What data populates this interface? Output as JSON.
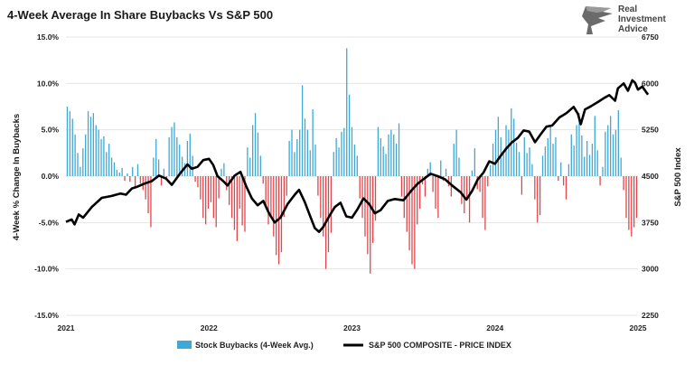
{
  "chart_data": {
    "type": "bar+line",
    "title": "4-Week Average In Share Buybacks Vs S&P 500",
    "ylabel_left": "4-Week % Change In Buybacks",
    "ylabel_right": "S&P 500 Index",
    "ylim_left": [
      -15,
      15
    ],
    "ylim_right": [
      2250,
      6750
    ],
    "left_ticks": [
      "15.0%",
      "10.0%",
      "5.0%",
      "0.0%",
      "-5.0%",
      "-10.0%",
      "-15.0%"
    ],
    "left_tick_values": [
      15,
      10,
      5,
      0,
      -5,
      -10,
      -15
    ],
    "right_ticks": [
      "6750",
      "6000",
      "5250",
      "4500",
      "3750",
      "3000",
      "2250"
    ],
    "right_tick_values": [
      6750,
      6000,
      5250,
      4500,
      3750,
      3000,
      2250
    ],
    "x_ticks": [
      "2021",
      "2022",
      "2023",
      "2024",
      "2025"
    ],
    "x_tick_values": [
      2021,
      2022,
      2023,
      2024,
      2025
    ],
    "xlim": [
      2021,
      2025
    ],
    "legend": [
      {
        "label": "Stock Buybacks (4-Week Avg.)",
        "color": "#3ea8d6"
      },
      {
        "label": "S&P 500 COMPOSITE - PRICE INDEX",
        "color": "#000000"
      }
    ],
    "colors": {
      "positive": "#3ea8d6",
      "negative": "#e0474c",
      "line": "#000000",
      "grid": "#e4e4e4"
    },
    "buybacks_weekly": [
      7.5,
      7,
      6.2,
      4.5,
      2.5,
      1,
      3,
      4.5,
      7,
      6.4,
      6.8,
      5.5,
      5,
      4,
      4.3,
      2.6,
      3.5,
      2,
      1.5,
      0.7,
      0.4,
      0.9,
      -0.5,
      0.3,
      -0.6,
      1,
      -1.2,
      1.3,
      -0.8,
      -1.5,
      -2.5,
      -4,
      -5.5,
      2,
      4,
      1.8,
      -1,
      0.8,
      -0.4,
      4.2,
      5.3,
      5.8,
      4.2,
      3.4,
      2.1,
      1.4,
      3.8,
      4.6,
      2.2,
      -0.6,
      -1.2,
      -2.5,
      -4.5,
      -5.2,
      -3.5,
      -2.8,
      -4.5,
      -5.5,
      -2.4,
      0.8,
      1.4,
      -1.5,
      -3.1,
      -4.5,
      -5.8,
      -7,
      -3.5,
      -5.3,
      -6,
      3.1,
      2,
      5.5,
      6.8,
      4.7,
      2.2,
      -0.8,
      -3.5,
      -5.2,
      -4.5,
      -6.5,
      -8.5,
      -9.5,
      -8.2,
      -4.4,
      -2.1,
      3.8,
      5,
      2.6,
      4,
      5,
      9.8,
      6.2,
      5,
      2.8,
      7.2,
      3.4,
      -2.1,
      -4.5,
      -6.5,
      -10,
      -8.2,
      -6.1,
      2.6,
      4.1,
      3.1,
      4.8,
      5.2,
      13.8,
      8.8,
      5.3,
      3.4,
      2.2,
      -2.4,
      -4.5,
      -6.5,
      -8.4,
      -10.5,
      -7.2,
      -4.8,
      5.3,
      4.1,
      3.2,
      2.4,
      4.5,
      5,
      4.5,
      3.5,
      5.7,
      -2.2,
      -4.5,
      -6,
      -8,
      -9.5,
      -10,
      -5.2,
      -3.5,
      -0.9,
      -2.2,
      0.8,
      1.5,
      -1.7,
      -3.5,
      -4.5,
      1.7,
      -0.5,
      0.8,
      -1.1,
      -2.2,
      3.5,
      5,
      2,
      -3,
      -4,
      -2.5,
      -5,
      0.6,
      3,
      -1.4,
      -1.7,
      -4.5,
      -5.8,
      -1.1,
      1.2,
      3.5,
      5,
      6.4,
      4.2,
      2.4,
      5.5,
      5,
      7.3,
      6.2,
      3.6,
      2.6,
      -2,
      4.2,
      2.5,
      3.1,
      1.3,
      -2.5,
      -5,
      -4.2,
      2.2,
      3.2,
      4.1,
      5.3,
      3.5,
      4.2,
      -0.5,
      1.5,
      -1,
      -2.5,
      1.3,
      4.5,
      3.3,
      5.5,
      6.8,
      4.4,
      2.1,
      3.8,
      2.3,
      3.5,
      6.5,
      2.8,
      -1,
      1,
      4.8,
      5.5,
      6.5,
      4.5,
      5,
      7.1,
      2,
      -1.5,
      -4.5,
      -5.8,
      -6.5,
      -5.5,
      -4.5
    ],
    "sp500": [
      [
        2021.0,
        3760
      ],
      [
        2021.04,
        3800
      ],
      [
        2021.06,
        3720
      ],
      [
        2021.09,
        3880
      ],
      [
        2021.12,
        3830
      ],
      [
        2021.18,
        4000
      ],
      [
        2021.25,
        4150
      ],
      [
        2021.32,
        4180
      ],
      [
        2021.38,
        4220
      ],
      [
        2021.42,
        4200
      ],
      [
        2021.46,
        4300
      ],
      [
        2021.5,
        4330
      ],
      [
        2021.55,
        4380
      ],
      [
        2021.6,
        4420
      ],
      [
        2021.65,
        4510
      ],
      [
        2021.7,
        4460
      ],
      [
        2021.74,
        4360
      ],
      [
        2021.8,
        4550
      ],
      [
        2021.85,
        4690
      ],
      [
        2021.88,
        4620
      ],
      [
        2021.92,
        4650
      ],
      [
        2021.96,
        4760
      ],
      [
        2022.0,
        4780
      ],
      [
        2022.03,
        4680
      ],
      [
        2022.06,
        4500
      ],
      [
        2022.1,
        4420
      ],
      [
        2022.13,
        4350
      ],
      [
        2022.18,
        4510
      ],
      [
        2022.22,
        4570
      ],
      [
        2022.26,
        4340
      ],
      [
        2022.3,
        4140
      ],
      [
        2022.34,
        4030
      ],
      [
        2022.38,
        4100
      ],
      [
        2022.42,
        3900
      ],
      [
        2022.46,
        3750
      ],
      [
        2022.5,
        3830
      ],
      [
        2022.55,
        4050
      ],
      [
        2022.6,
        4200
      ],
      [
        2022.63,
        4280
      ],
      [
        2022.67,
        4080
      ],
      [
        2022.7,
        3900
      ],
      [
        2022.74,
        3660
      ],
      [
        2022.77,
        3600
      ],
      [
        2022.8,
        3680
      ],
      [
        2022.84,
        3850
      ],
      [
        2022.88,
        4000
      ],
      [
        2022.92,
        4070
      ],
      [
        2022.96,
        3850
      ],
      [
        2023.0,
        3830
      ],
      [
        2023.04,
        3970
      ],
      [
        2023.08,
        4140
      ],
      [
        2023.12,
        4050
      ],
      [
        2023.16,
        3900
      ],
      [
        2023.2,
        3950
      ],
      [
        2023.25,
        4100
      ],
      [
        2023.3,
        4130
      ],
      [
        2023.36,
        4110
      ],
      [
        2023.42,
        4280
      ],
      [
        2023.46,
        4380
      ],
      [
        2023.5,
        4450
      ],
      [
        2023.55,
        4540
      ],
      [
        2023.6,
        4500
      ],
      [
        2023.65,
        4450
      ],
      [
        2023.7,
        4350
      ],
      [
        2023.76,
        4240
      ],
      [
        2023.8,
        4120
      ],
      [
        2023.84,
        4260
      ],
      [
        2023.88,
        4450
      ],
      [
        2023.92,
        4560
      ],
      [
        2023.96,
        4740
      ],
      [
        2024.0,
        4700
      ],
      [
        2024.04,
        4830
      ],
      [
        2024.08,
        4950
      ],
      [
        2024.12,
        5050
      ],
      [
        2024.16,
        5120
      ],
      [
        2024.2,
        5240
      ],
      [
        2024.24,
        5220
      ],
      [
        2024.28,
        5050
      ],
      [
        2024.32,
        5180
      ],
      [
        2024.36,
        5300
      ],
      [
        2024.4,
        5320
      ],
      [
        2024.45,
        5450
      ],
      [
        2024.5,
        5520
      ],
      [
        2024.55,
        5620
      ],
      [
        2024.58,
        5510
      ],
      [
        2024.6,
        5340
      ],
      [
        2024.63,
        5580
      ],
      [
        2024.67,
        5630
      ],
      [
        2024.72,
        5700
      ],
      [
        2024.76,
        5760
      ],
      [
        2024.8,
        5810
      ],
      [
        2024.84,
        5720
      ],
      [
        2024.86,
        5920
      ],
      [
        2024.9,
        6000
      ],
      [
        2024.93,
        5880
      ],
      [
        2024.96,
        6050
      ],
      [
        2024.98,
        6010
      ],
      [
        2025.0,
        5900
      ],
      [
        2025.03,
        5950
      ],
      [
        2025.07,
        5820
      ]
    ]
  },
  "logo": {
    "line1": "Real",
    "line2": "Investment",
    "line3": "Advice"
  }
}
